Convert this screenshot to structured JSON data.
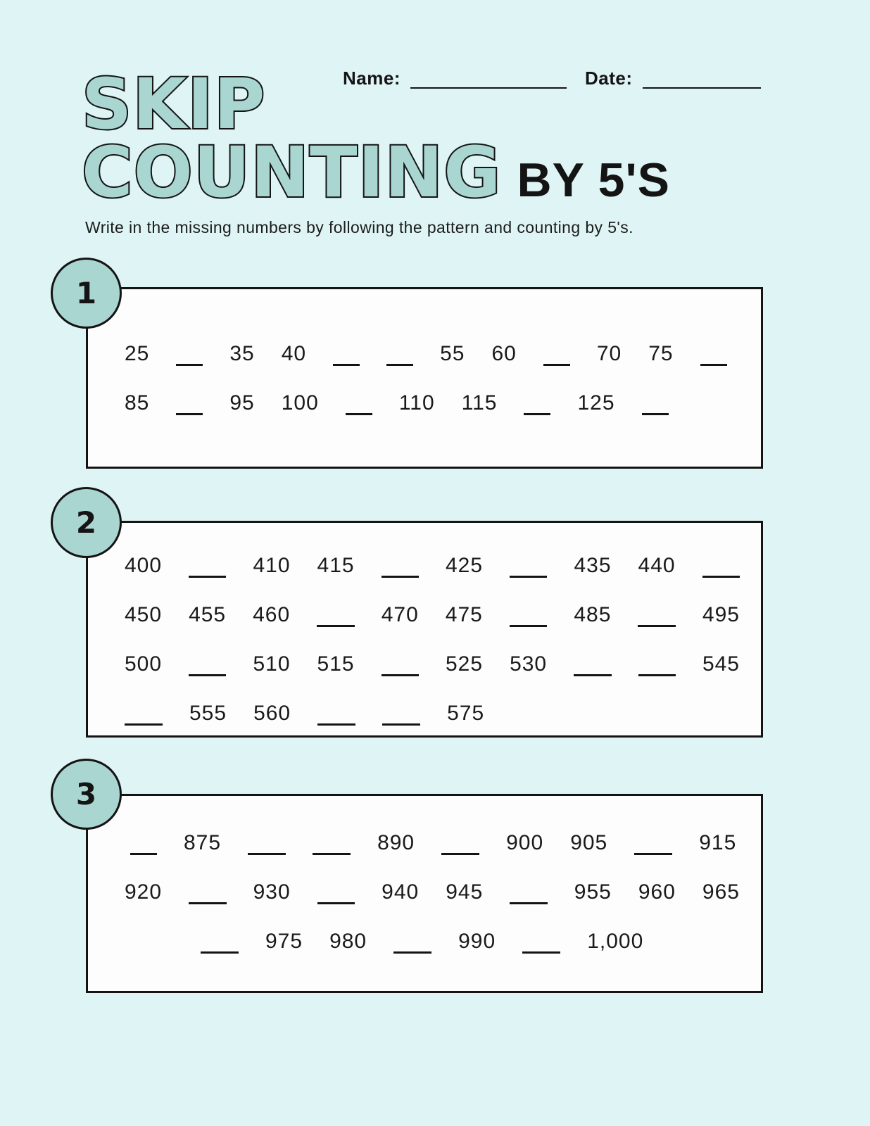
{
  "page": {
    "bg_color": "#dff4f4",
    "accent_teal": "#a9d6d1",
    "ink_color": "#141414"
  },
  "header": {
    "name_label": "Name:",
    "date_label": "Date:"
  },
  "title": {
    "line1": "SKIP",
    "line2": "COUNTING",
    "suffix": "BY 5'S"
  },
  "instruction": "Write in the missing numbers by following the pattern and counting by 5's.",
  "sections": [
    {
      "number": "1",
      "rows": [
        [
          "25",
          "__",
          "35",
          "40",
          "__",
          "__",
          "55",
          "60",
          "__",
          "70",
          "75",
          "__"
        ],
        [
          "85",
          "__",
          "95",
          "100",
          "__",
          "110",
          "115",
          "__",
          "125",
          "__"
        ]
      ],
      "row_indents": [
        0,
        0
      ]
    },
    {
      "number": "2",
      "rows": [
        [
          "400",
          "___",
          "410",
          "415",
          "___",
          "425",
          "___",
          "435",
          "440",
          "___"
        ],
        [
          "450",
          "455",
          "460",
          "___",
          "470",
          "475",
          "___",
          "485",
          "___",
          "495"
        ],
        [
          "500",
          "___",
          "510",
          "515",
          "___",
          "525",
          "530",
          "___",
          "___",
          "545"
        ],
        [
          "___",
          "555",
          "560",
          "___",
          "___",
          "575"
        ]
      ],
      "row_indents": [
        0,
        0,
        0,
        0
      ]
    },
    {
      "number": "3",
      "rows": [
        [
          "__",
          "875",
          "___",
          "___",
          "890",
          "___",
          "900",
          "905",
          "___",
          "915"
        ],
        [
          "920",
          "___",
          "930",
          "___",
          "940",
          "945",
          "___",
          "955",
          "960",
          "965"
        ],
        [
          "___",
          "975",
          "980",
          "___",
          "990",
          "___",
          "1,000"
        ]
      ],
      "row_indents": [
        8,
        0,
        108
      ]
    }
  ]
}
